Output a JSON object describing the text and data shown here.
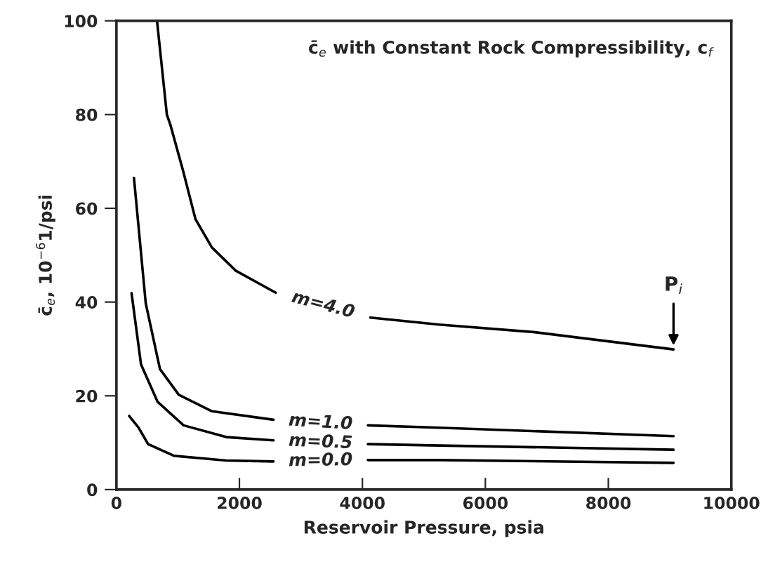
{
  "chart_data": {
    "type": "line",
    "title": "c̄$_{e}$ with Constant Rock Compressibility, c$_{f}$",
    "xlabel": "Reservoir Pressure, psia",
    "ylabel": "c̄$_{e}$, 10$^{−6}$1/psi",
    "series": [
      {
        "name": "m=4.0",
        "color": "#000000",
        "x": [
          660,
          820,
          880,
          1090,
          1285,
          1550,
          1940,
          2590,
          3360,
          4130,
          5250,
          6780,
          9060
        ],
        "values": [
          100,
          80,
          77.7,
          67.7,
          57.7,
          51.7,
          46.7,
          42,
          null,
          36.7,
          35.2,
          33.6,
          29.9
        ]
      },
      {
        "name": "m=1.0",
        "color": "#000000",
        "x": [
          285,
          477,
          708,
          1015,
          1554,
          2554,
          3320,
          4090,
          5250,
          9060
        ],
        "values": [
          66.5,
          39.7,
          25.7,
          20.2,
          16.7,
          14.9,
          null,
          13.7,
          13.2,
          11.4
        ]
      },
      {
        "name": "m=0.5",
        "color": "#000000",
        "x": [
          246,
          400,
          670,
          1092,
          1785,
          2554,
          3320,
          4090,
          5250,
          9060
        ],
        "values": [
          41.9,
          26.7,
          18.7,
          13.7,
          11.2,
          10.5,
          null,
          9.7,
          9.4,
          8.5
        ]
      },
      {
        "name": "m=0.0",
        "color": "#000000",
        "x": [
          208,
          360,
          515,
          938,
          1785,
          2554,
          3320,
          4090,
          5250,
          9060
        ],
        "values": [
          15.7,
          13.2,
          9.7,
          7.2,
          6.2,
          6.0,
          null,
          6.3,
          6.3,
          5.7
        ]
      }
    ],
    "annotations": [
      {
        "text": "P$_{i}$",
        "x": 9060,
        "y": 29.9
      }
    ],
    "xlim": [
      0,
      10000
    ],
    "xticks": [
      0,
      2000,
      4000,
      6000,
      8000,
      10000
    ],
    "ylim": [
      0,
      100
    ],
    "yticks": [
      0,
      20,
      40,
      60,
      80,
      100
    ],
    "grid": false,
    "legend": false,
    "marker": "none",
    "line_style": "solid"
  }
}
